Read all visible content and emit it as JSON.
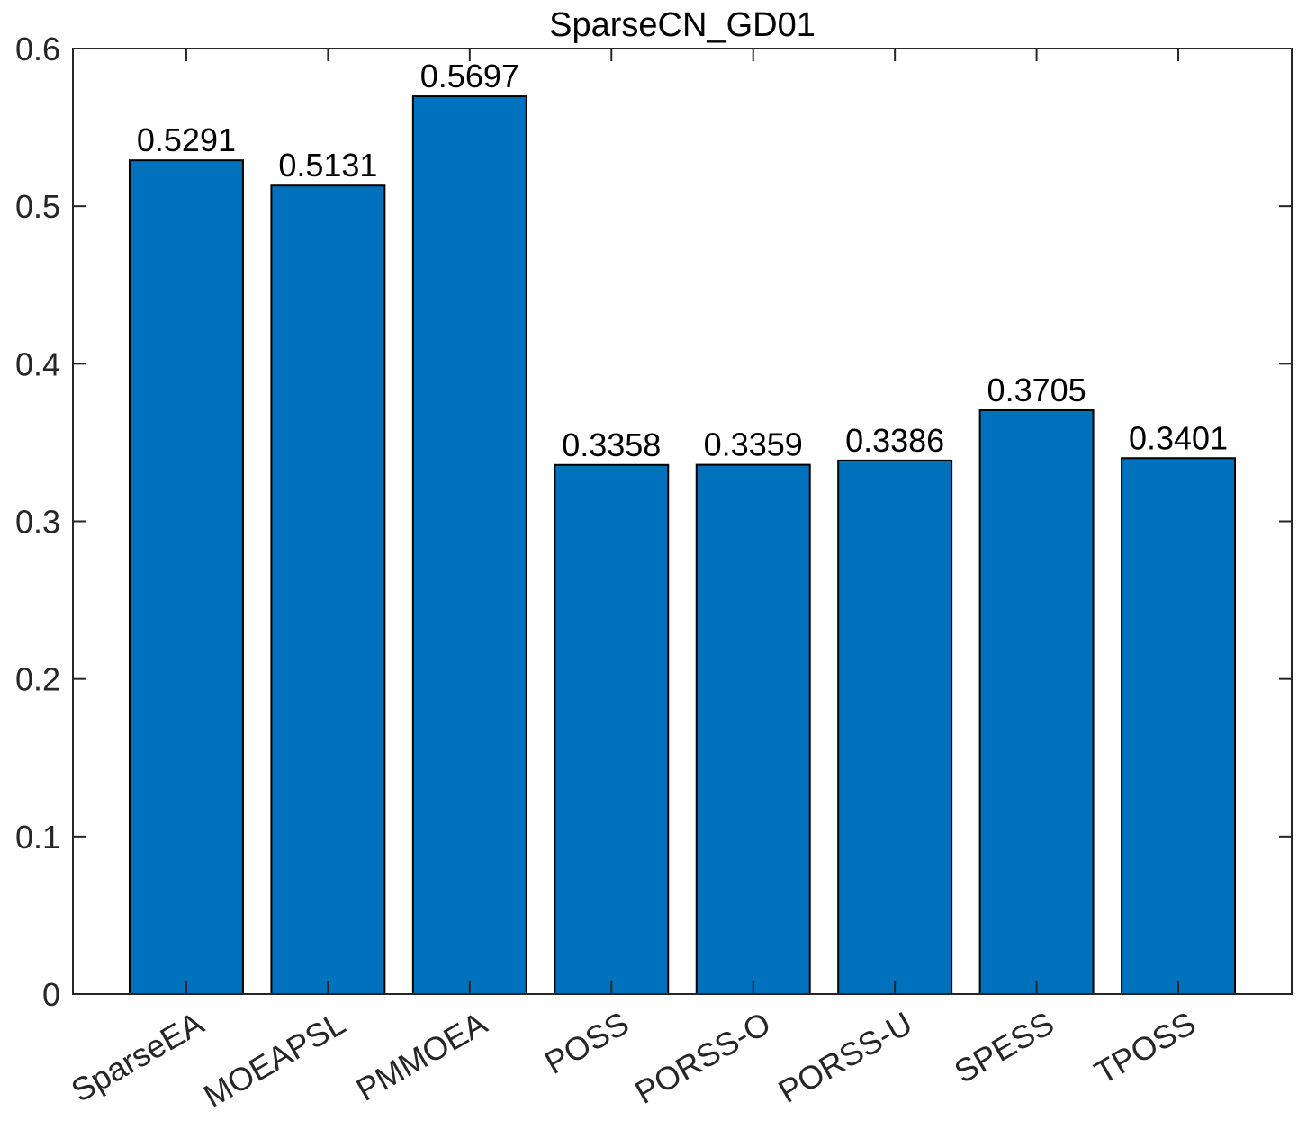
{
  "chart_data": {
    "type": "bar",
    "title": "SparseCN_GD01",
    "xlabel": "",
    "ylabel": "",
    "categories": [
      "SparseEA",
      "MOEAPSL",
      "PMMOEA",
      "POSS",
      "PORSS-O",
      "PORSS-U",
      "SPESS",
      "TPOSS"
    ],
    "values": [
      0.5291,
      0.5131,
      0.5697,
      0.3358,
      0.3359,
      0.3386,
      0.3705,
      0.3401
    ],
    "data_labels": [
      "0.5291",
      "0.5131",
      "0.5697",
      "0.3358",
      "0.3359",
      "0.3386",
      "0.3705",
      "0.3401"
    ],
    "ylim": [
      0,
      0.6
    ],
    "yticks": [
      0,
      0.1,
      0.2,
      0.3,
      0.4,
      0.5,
      0.6
    ],
    "ytick_labels": [
      "0",
      "0.1",
      "0.2",
      "0.3",
      "0.4",
      "0.5",
      "0.6"
    ],
    "grid": false,
    "bar_color": "#0072BD",
    "axis_color": "#262626"
  }
}
